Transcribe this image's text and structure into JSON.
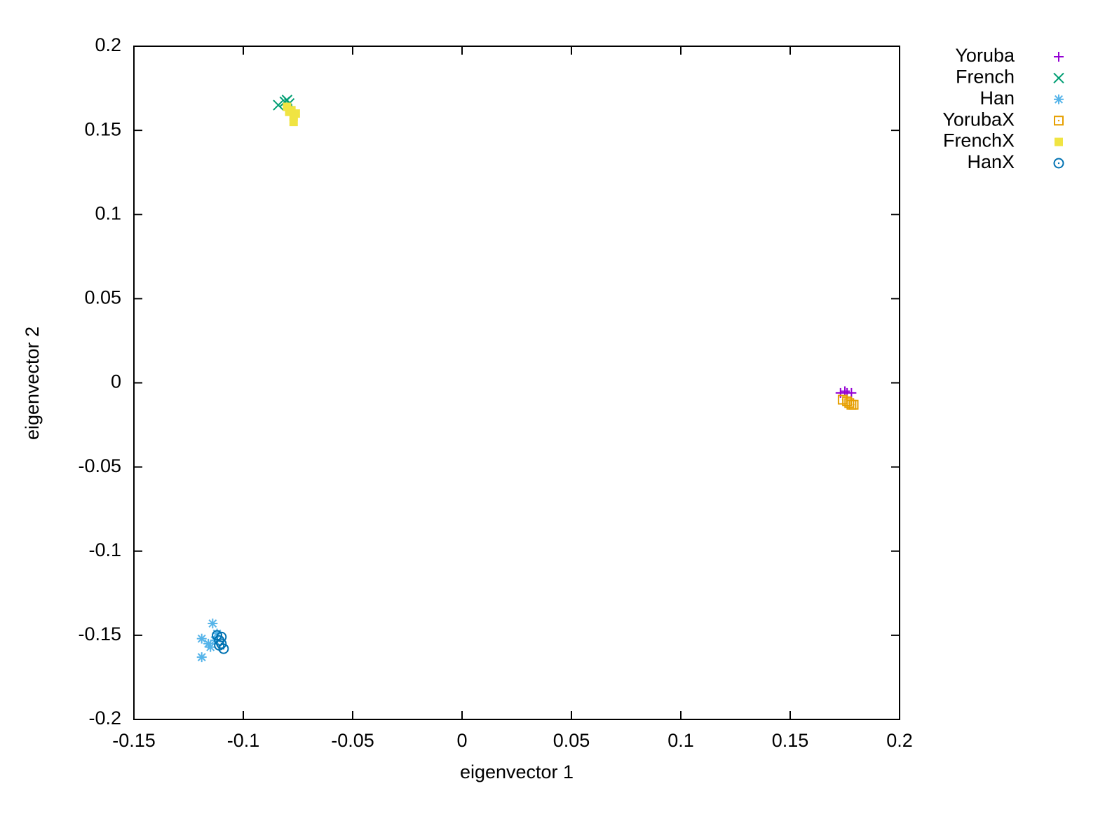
{
  "chart_data": {
    "type": "scatter",
    "xlabel": "eigenvector 1",
    "ylabel": "eigenvector 2",
    "xlim": [
      -0.15,
      0.2
    ],
    "xticks": [
      -0.15,
      -0.1,
      -0.05,
      0,
      0.05,
      0.1,
      0.15,
      0.2
    ],
    "ylim": [
      -0.2,
      0.2
    ],
    "yticks": [
      -0.2,
      -0.15,
      -0.1,
      -0.05,
      0,
      0.05,
      0.1,
      0.15,
      0.2
    ],
    "grid": false,
    "legend": "outside-right",
    "series": [
      {
        "name": "Yoruba",
        "color": "#9400d3",
        "marker": "plus",
        "x": [
          0.173,
          0.175,
          0.176,
          0.178
        ],
        "values": [
          -0.006,
          -0.005,
          -0.006,
          -0.006
        ]
      },
      {
        "name": "French",
        "color": "#009e73",
        "marker": "cross",
        "x": [
          -0.084,
          -0.081,
          -0.08,
          -0.079
        ],
        "values": [
          0.165,
          0.167,
          0.168,
          0.166
        ]
      },
      {
        "name": "Han",
        "color": "#56b4e9",
        "marker": "star",
        "x": [
          -0.119,
          -0.119,
          -0.114,
          -0.116,
          -0.115,
          -0.113,
          -0.112
        ],
        "values": [
          -0.152,
          -0.163,
          -0.143,
          -0.155,
          -0.157,
          -0.153,
          -0.149
        ]
      },
      {
        "name": "YorubaX",
        "color": "#e69f00",
        "marker": "open-square",
        "x": [
          0.174,
          0.176,
          0.177,
          0.178,
          0.179
        ],
        "values": [
          -0.01,
          -0.011,
          -0.012,
          -0.013,
          -0.013
        ]
      },
      {
        "name": "FrenchX",
        "color": "#f0e442",
        "marker": "filled-square",
        "x": [
          -0.08,
          -0.078,
          -0.077,
          -0.076,
          -0.077,
          -0.079
        ],
        "values": [
          0.164,
          0.162,
          0.158,
          0.16,
          0.155,
          0.161
        ]
      },
      {
        "name": "HanX",
        "color": "#0072b2",
        "marker": "open-circle",
        "x": [
          -0.112,
          -0.111,
          -0.11,
          -0.109,
          -0.111,
          -0.11
        ],
        "values": [
          -0.15,
          -0.153,
          -0.155,
          -0.158,
          -0.156,
          -0.151
        ]
      }
    ]
  }
}
